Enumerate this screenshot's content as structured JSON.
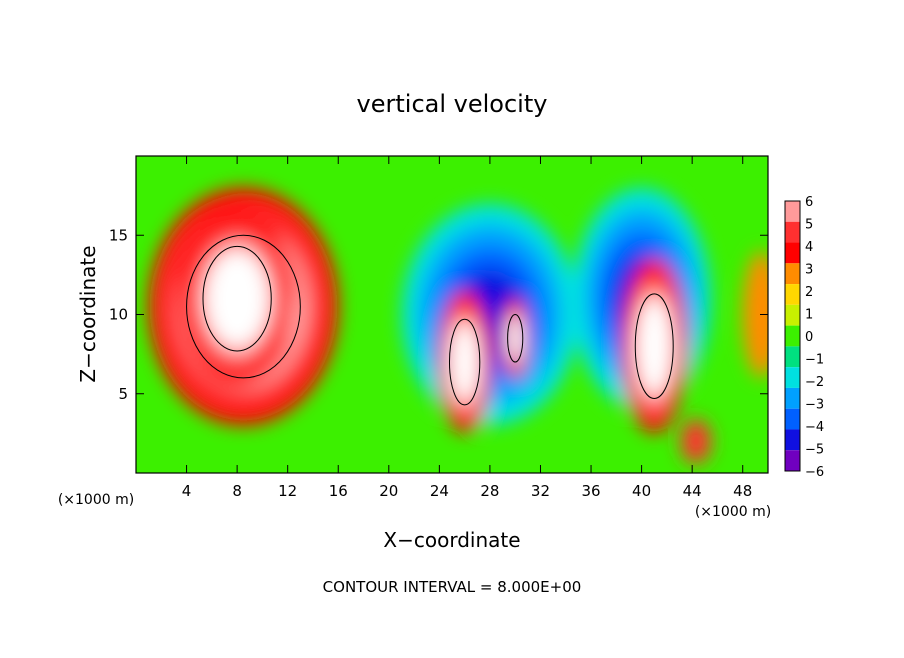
{
  "chart_data": {
    "type": "heatmap",
    "title": "vertical velocity",
    "xlabel": "X−coordinate",
    "ylabel": "Z−coordinate",
    "x_unit_left": "(×1000 m)",
    "x_unit_right": "(×1000 m)",
    "footer": "CONTOUR INTERVAL = 8.000E+00",
    "xlim": [
      0,
      50
    ],
    "ylim": [
      0,
      20
    ],
    "x_ticks": [
      4,
      8,
      12,
      16,
      20,
      24,
      28,
      32,
      36,
      40,
      44,
      48
    ],
    "y_ticks": [
      5,
      10,
      15
    ],
    "colorbar": {
      "levels": [
        6,
        5,
        4,
        3,
        2,
        1,
        0,
        -1,
        -2,
        -3,
        -4,
        -5,
        -6
      ],
      "labels": [
        "6",
        "5",
        "4",
        "3",
        "2",
        "1",
        "0",
        "−1",
        "−2",
        "−3",
        "−4",
        "−5",
        "−6"
      ],
      "colors": [
        "#ff9a9a",
        "#ff3030",
        "#ff0000",
        "#ff8c00",
        "#ffd700",
        "#c8f000",
        "#3cf000",
        "#00e080",
        "#00e0e0",
        "#00a0ff",
        "#0060ff",
        "#1010e0",
        "#7000c0"
      ]
    },
    "features": [
      {
        "kind": "updraft",
        "x": 8.5,
        "z": 10.5,
        "rx": 7.5,
        "rz": 7.5,
        "w": 6.5
      },
      {
        "kind": "updraft-core",
        "x": 8.0,
        "z": 11.0,
        "rx": 4.5,
        "rz": 5.5,
        "w": 7.0
      },
      {
        "kind": "downdraft",
        "x": 28.0,
        "z": 10.0,
        "rx": 7.0,
        "rz": 7.0,
        "w": -4.5
      },
      {
        "kind": "downdraft",
        "x": 40.0,
        "z": 11.0,
        "rx": 5.5,
        "rz": 7.0,
        "w": -4.5
      },
      {
        "kind": "updraft-band",
        "x": 26.0,
        "z": 7.0,
        "rx": 2.0,
        "rz": 4.5,
        "w": 7.0
      },
      {
        "kind": "updraft-band",
        "x": 30.0,
        "z": 8.5,
        "rx": 1.0,
        "rz": 2.5,
        "w": 7.0
      },
      {
        "kind": "updraft-band",
        "x": 41.0,
        "z": 8.0,
        "rx": 2.5,
        "rz": 5.5,
        "w": 7.0
      },
      {
        "kind": "updraft-small",
        "x": 44.3,
        "z": 2.0,
        "rx": 1.2,
        "rz": 1.4,
        "w": 5.0
      },
      {
        "kind": "weak-updraft",
        "x": 49.5,
        "z": 10.0,
        "rx": 1.5,
        "rz": 4.0,
        "w": 3.0
      }
    ]
  }
}
